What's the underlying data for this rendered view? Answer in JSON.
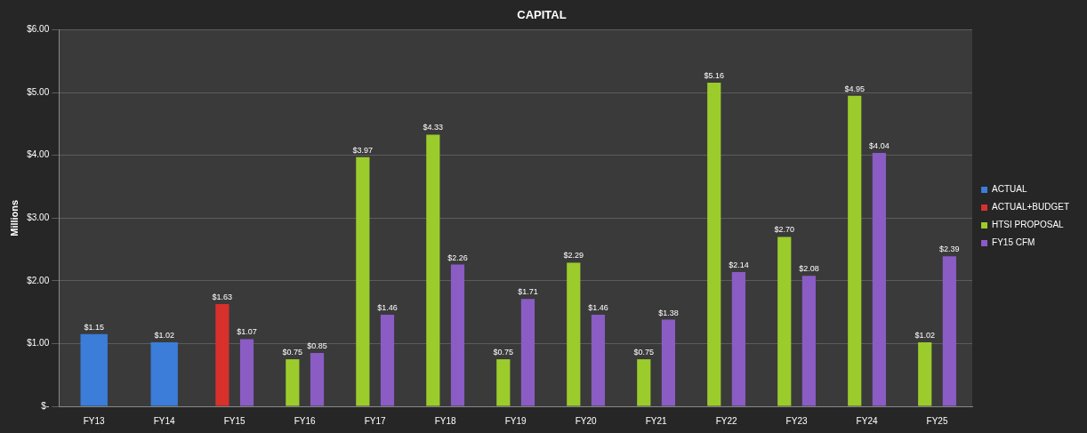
{
  "chart_data": {
    "type": "bar",
    "title": "CAPITAL",
    "ylabel": "Millions",
    "categories": [
      "FY13",
      "FY14",
      "FY15",
      "FY16",
      "FY17",
      "FY18",
      "FY19",
      "FY20",
      "FY21",
      "FY22",
      "FY23",
      "FY24",
      "FY25"
    ],
    "series": [
      {
        "name": "ACTUAL",
        "color": "#3b7dd8",
        "values": [
          1.15,
          1.02,
          null,
          null,
          null,
          null,
          null,
          null,
          null,
          null,
          null,
          null,
          null
        ],
        "value_labels": [
          "$1.15",
          "$1.02",
          null,
          null,
          null,
          null,
          null,
          null,
          null,
          null,
          null,
          null,
          null
        ]
      },
      {
        "name": "ACTUAL+BUDGET",
        "color": "#d8302b",
        "values": [
          null,
          null,
          1.63,
          null,
          null,
          null,
          null,
          null,
          null,
          null,
          null,
          null,
          null
        ],
        "value_labels": [
          null,
          null,
          "$1.63",
          null,
          null,
          null,
          null,
          null,
          null,
          null,
          null,
          null,
          null
        ]
      },
      {
        "name": "HTSI PROPOSAL",
        "color": "#9ccc2c",
        "values": [
          null,
          null,
          null,
          0.75,
          3.97,
          4.33,
          0.75,
          2.29,
          0.75,
          5.16,
          2.7,
          4.95,
          1.02
        ],
        "value_labels": [
          null,
          null,
          null,
          "$0.75",
          "$3.97",
          "$4.33",
          "$0.75",
          "$2.29",
          "$0.75",
          "$5.16",
          "$2.70",
          "$4.95",
          "$1.02"
        ]
      },
      {
        "name": "FY15 CFM",
        "color": "#8a5cc4",
        "values": [
          null,
          null,
          1.07,
          0.85,
          1.46,
          2.26,
          1.71,
          1.46,
          1.38,
          2.14,
          2.08,
          4.04,
          2.39
        ],
        "value_labels": [
          null,
          null,
          "$1.07",
          "$0.85",
          "$1.46",
          "$2.26",
          "$1.71",
          "$1.46",
          "$1.38",
          "$2.14",
          "$2.08",
          "$4.04",
          "$2.39"
        ]
      }
    ],
    "ylim": [
      0,
      6
    ],
    "yticks": [
      {
        "value": 0,
        "label": "$-"
      },
      {
        "value": 1,
        "label": "$1.00"
      },
      {
        "value": 2,
        "label": "$2.00"
      },
      {
        "value": 3,
        "label": "$3.00"
      },
      {
        "value": 4,
        "label": "$4.00"
      },
      {
        "value": 5,
        "label": "$5.00"
      },
      {
        "value": 6,
        "label": "$6.00"
      }
    ],
    "grid": "y",
    "legend": "right"
  }
}
